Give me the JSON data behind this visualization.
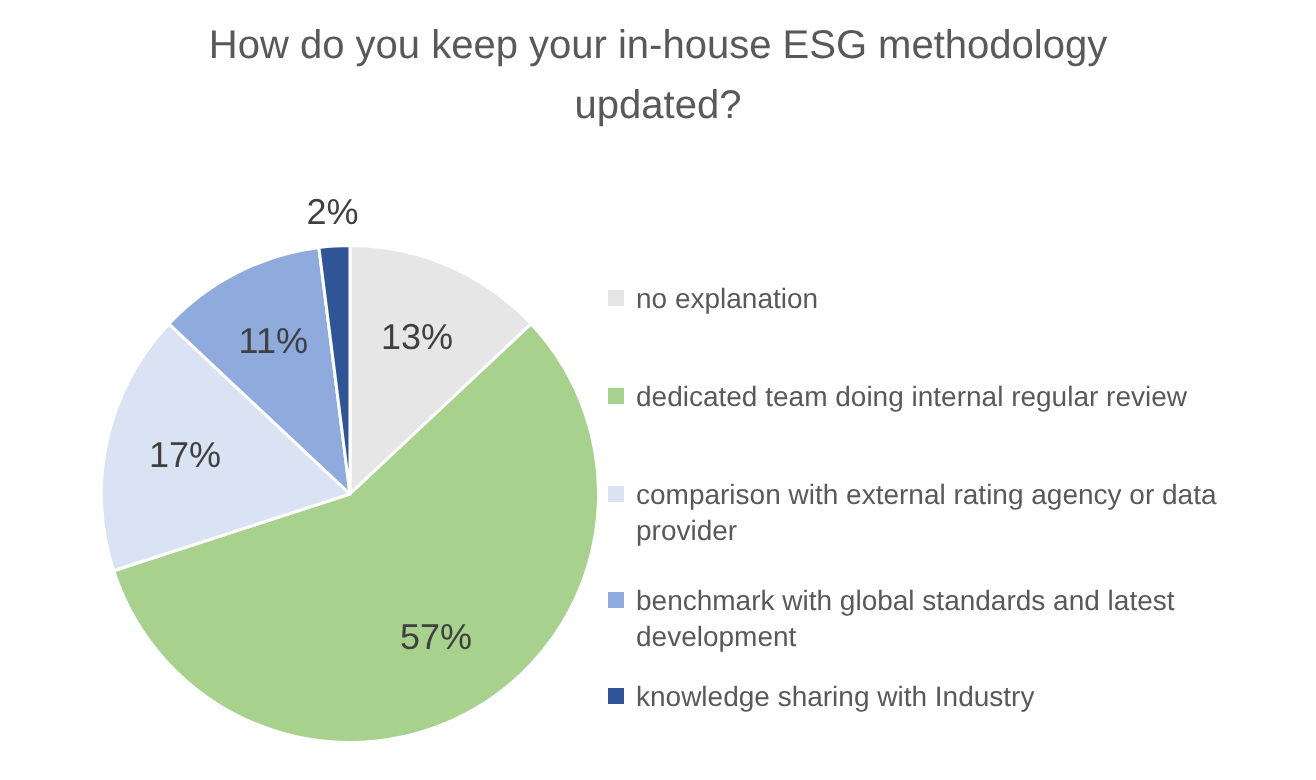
{
  "chart_data": {
    "type": "pie",
    "title": "How do you keep your in-house ESG methodology updated?",
    "categories": [
      "no explanation",
      "dedicated team doing internal regular review",
      "comparison with external rating agency or data provider",
      "benchmark with global standards and latest development",
      "knowledge sharing with Industry"
    ],
    "values": [
      13,
      57,
      17,
      11,
      2
    ],
    "colors": [
      "#e7e6e6",
      "#a9d18e",
      "#dae3f3",
      "#8faadc",
      "#2f5597"
    ],
    "value_labels": [
      "13%",
      "57%",
      "17%",
      "11%",
      "2%"
    ],
    "legend": "right"
  }
}
